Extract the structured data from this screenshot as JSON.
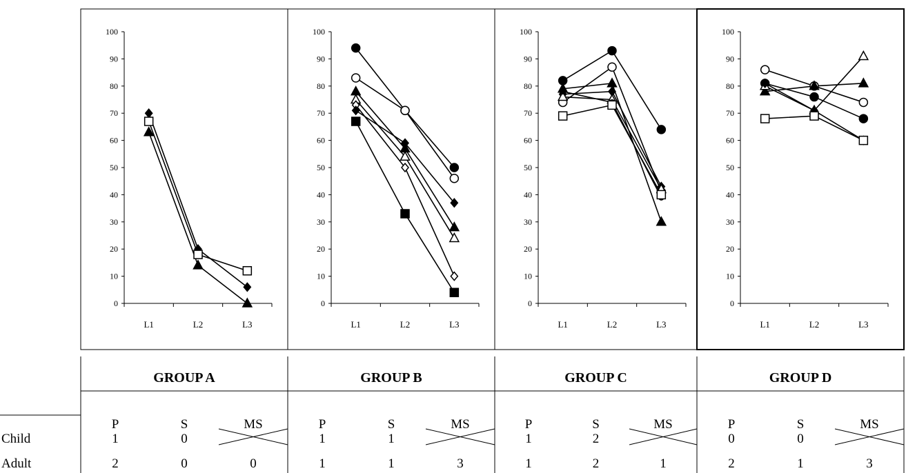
{
  "chart_data": [
    {
      "type": "line",
      "categories": [
        "L1",
        "L2",
        "L3"
      ],
      "ylim": [
        0,
        100
      ],
      "yticks": [
        "0",
        "10",
        "20",
        "30",
        "40",
        "50",
        "60",
        "70",
        "80",
        "90",
        "100"
      ],
      "series": [
        {
          "marker": "diamond-filled",
          "values": [
            70,
            20,
            6
          ]
        },
        {
          "marker": "square-open",
          "values": [
            67,
            18,
            12
          ]
        },
        {
          "marker": "triangle-filled",
          "values": [
            63,
            14,
            0
          ]
        }
      ]
    },
    {
      "type": "line",
      "categories": [
        "L1",
        "L2",
        "L3"
      ],
      "ylim": [
        0,
        100
      ],
      "yticks": [
        "0",
        "10",
        "20",
        "30",
        "40",
        "50",
        "60",
        "70",
        "80",
        "90",
        "100"
      ],
      "series": [
        {
          "marker": "circle-filled",
          "values": [
            94,
            71,
            50
          ]
        },
        {
          "marker": "circle-open",
          "values": [
            83,
            71,
            46
          ]
        },
        {
          "marker": "triangle-filled",
          "values": [
            78,
            57,
            28
          ]
        },
        {
          "marker": "triangle-open",
          "values": [
            75,
            54,
            24
          ]
        },
        {
          "marker": "diamond-open",
          "values": [
            73,
            50,
            10
          ]
        },
        {
          "marker": "diamond-filled",
          "values": [
            71,
            59,
            37
          ]
        },
        {
          "marker": "square-filled",
          "values": [
            67,
            33,
            4
          ]
        }
      ]
    },
    {
      "type": "line",
      "categories": [
        "L1",
        "L2",
        "L3"
      ],
      "ylim": [
        0,
        100
      ],
      "yticks": [
        "0",
        "10",
        "20",
        "30",
        "40",
        "50",
        "60",
        "70",
        "80",
        "90",
        "100"
      ],
      "series": [
        {
          "marker": "circle-filled",
          "values": [
            82,
            93,
            64
          ]
        },
        {
          "marker": "circle-open",
          "values": [
            74,
            87,
            41
          ]
        },
        {
          "marker": "triangle-filled",
          "values": [
            79,
            81,
            30
          ]
        },
        {
          "marker": "diamond-filled",
          "values": [
            77,
            78,
            43
          ]
        },
        {
          "marker": "triangle-open",
          "values": [
            76,
            75,
            42
          ]
        },
        {
          "marker": "filled-dot",
          "values": [
            78,
            74,
            39
          ]
        },
        {
          "marker": "square-open",
          "values": [
            69,
            73,
            40
          ]
        }
      ]
    },
    {
      "type": "line",
      "categories": [
        "L1",
        "L2",
        "L3"
      ],
      "ylim": [
        0,
        100
      ],
      "yticks": [
        "0",
        "10",
        "20",
        "30",
        "40",
        "50",
        "60",
        "70",
        "80",
        "90",
        "100"
      ],
      "series": [
        {
          "marker": "circle-open",
          "values": [
            86,
            80,
            74
          ]
        },
        {
          "marker": "circle-filled",
          "values": [
            81,
            76,
            68
          ]
        },
        {
          "marker": "triangle-filled",
          "values": [
            78,
            80,
            81
          ]
        },
        {
          "marker": "triangle-open",
          "values": [
            80,
            71,
            91
          ]
        },
        {
          "marker": "diamond-filled",
          "values": [
            81,
            71,
            60
          ]
        },
        {
          "marker": "square-open",
          "values": [
            68,
            69,
            60
          ]
        }
      ]
    }
  ],
  "table": {
    "groups": [
      "GROUP A",
      "GROUP B",
      "GROUP C",
      "GROUP D"
    ],
    "subheaders": [
      "P",
      "S",
      "MS"
    ],
    "rows": [
      {
        "label": "Child",
        "values": [
          [
            "1",
            "0",
            ""
          ],
          [
            "1",
            "1",
            ""
          ],
          [
            "1",
            "2",
            ""
          ],
          [
            "0",
            "0",
            ""
          ]
        ]
      },
      {
        "label": "Adult",
        "values": [
          [
            "2",
            "0",
            "0"
          ],
          [
            "1",
            "1",
            "3"
          ],
          [
            "1",
            "2",
            "1"
          ],
          [
            "2",
            "1",
            "3"
          ]
        ]
      }
    ]
  }
}
